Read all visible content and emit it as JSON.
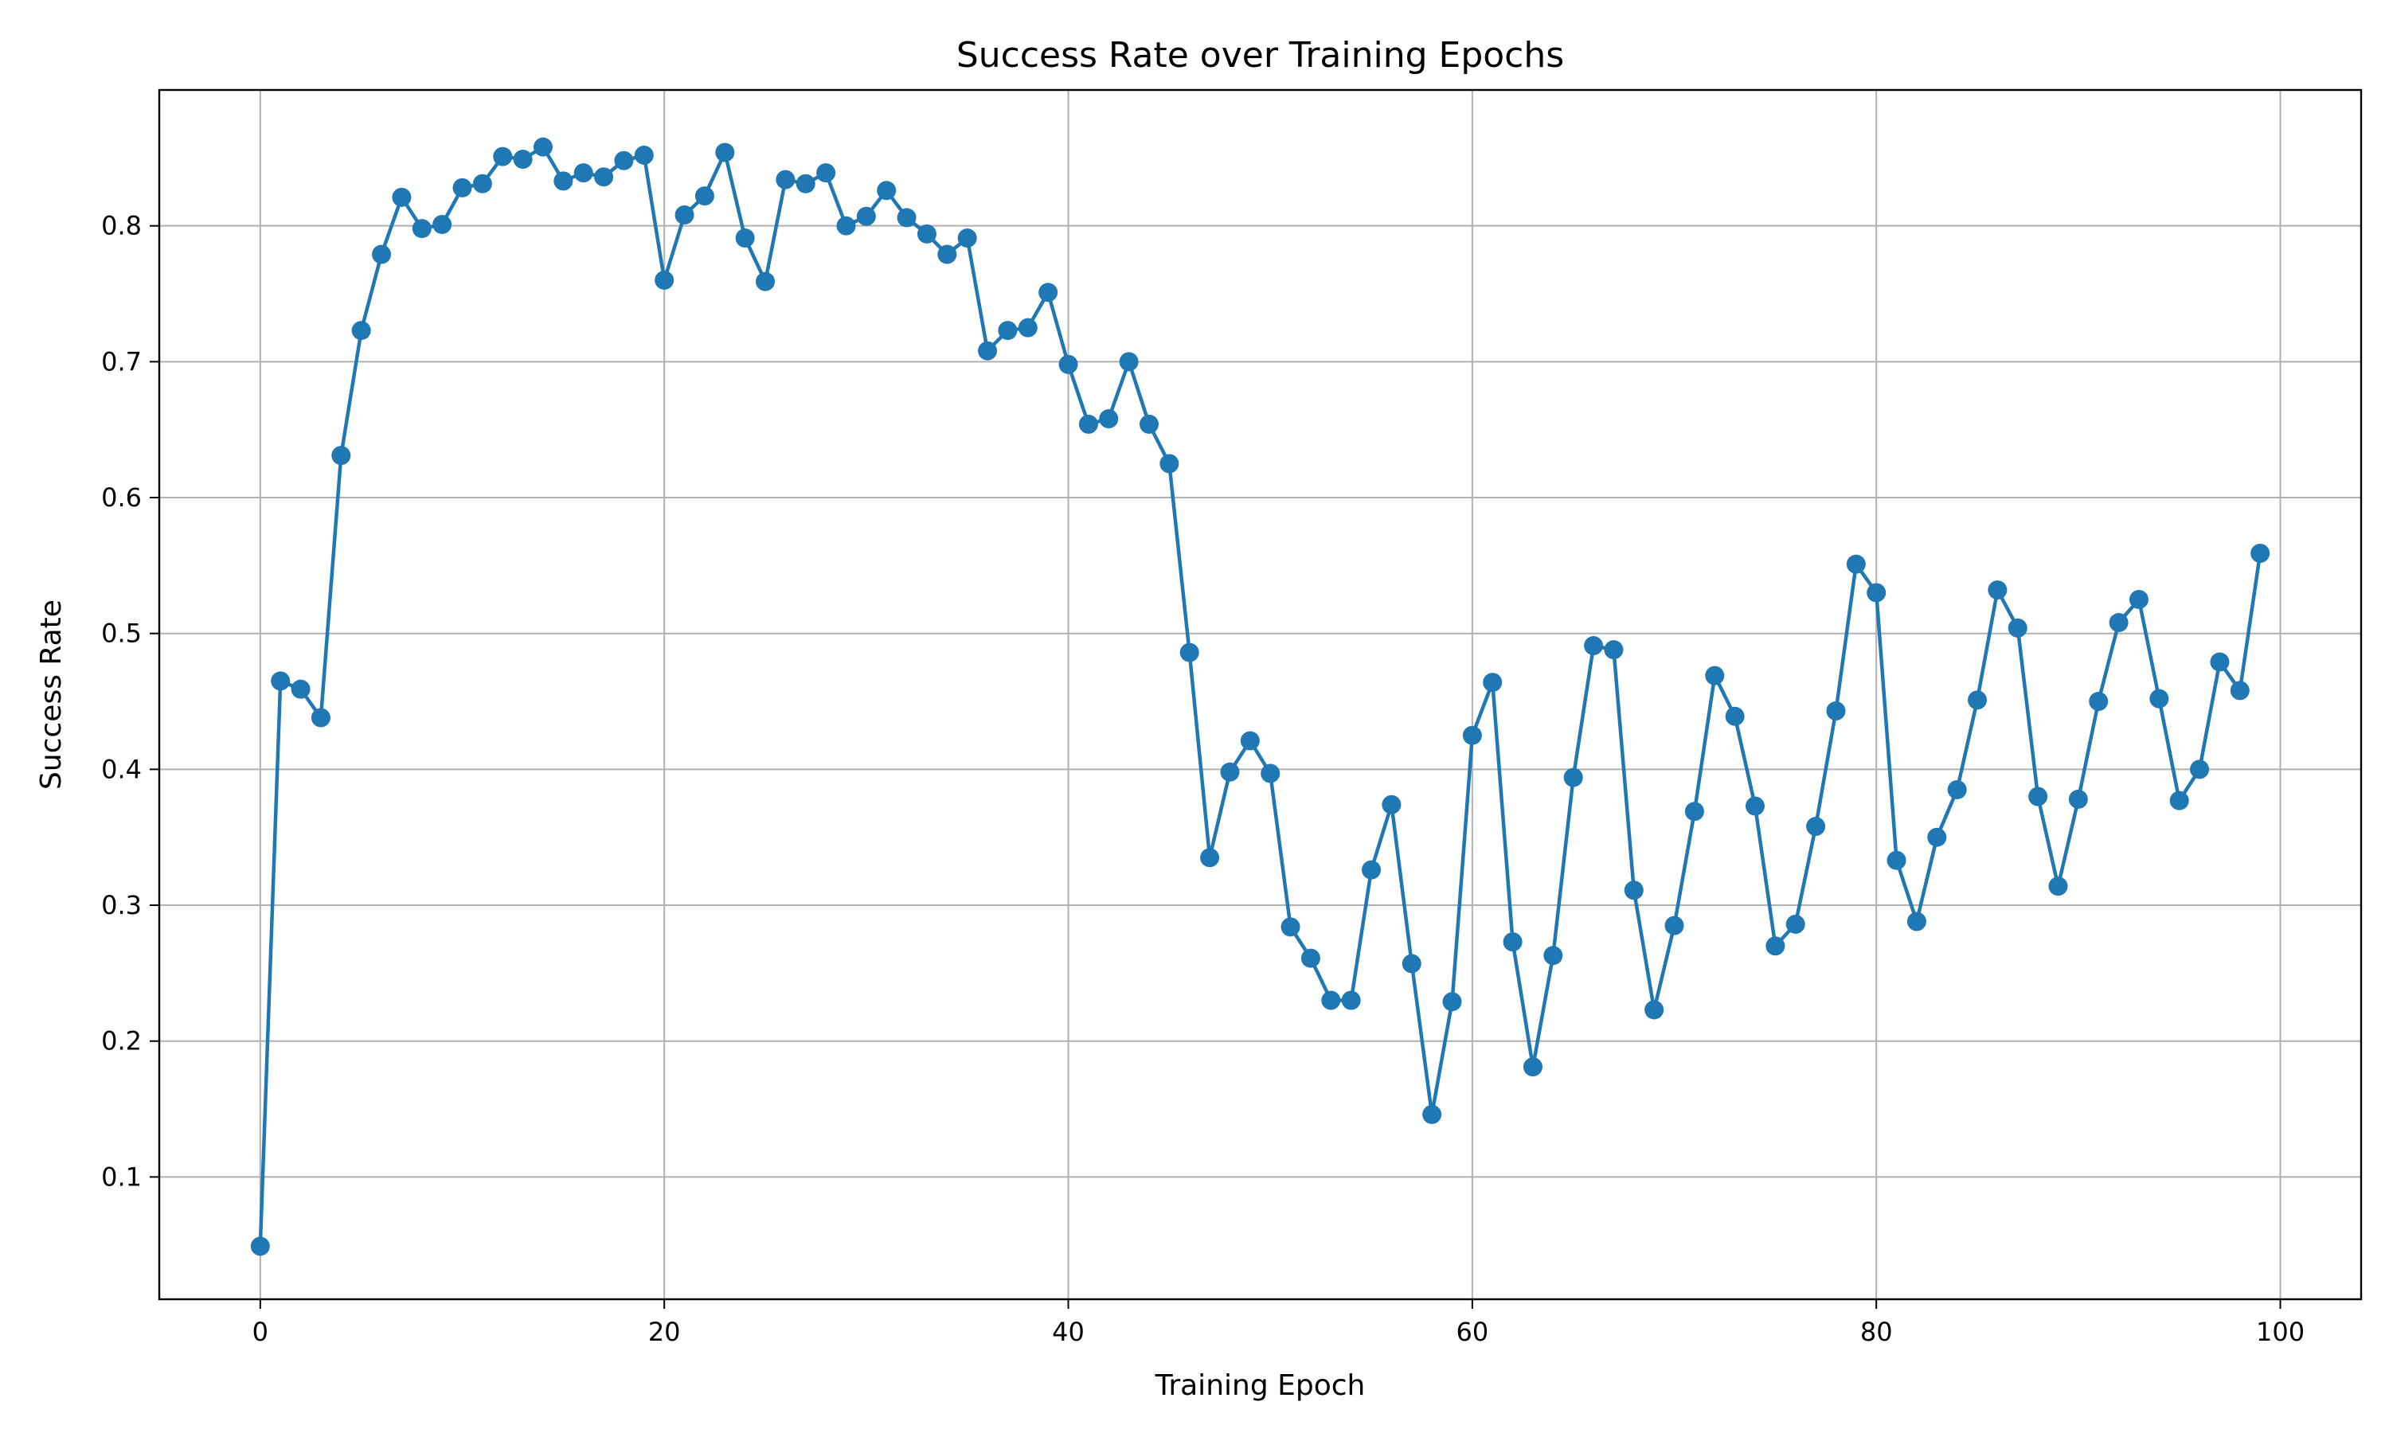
{
  "chart_data": {
    "type": "line",
    "title": "Success Rate over Training Epochs",
    "xlabel": "Training Epoch",
    "ylabel": "Success Rate",
    "xlim": [
      -5,
      104
    ],
    "ylim": [
      0.01,
      0.9
    ],
    "xticks": [
      0,
      20,
      40,
      60,
      80,
      100
    ],
    "yticks": [
      0.1,
      0.2,
      0.3,
      0.4,
      0.5,
      0.6,
      0.7,
      0.8
    ],
    "ytick_labels": [
      "0.1",
      "0.2",
      "0.3",
      "0.4",
      "0.5",
      "0.6",
      "0.7",
      "0.8"
    ],
    "grid": true,
    "color": "#1f77b4",
    "marker": "circle",
    "x": [
      0,
      1,
      2,
      3,
      4,
      5,
      6,
      7,
      8,
      9,
      10,
      11,
      12,
      13,
      14,
      15,
      16,
      17,
      18,
      19,
      20,
      21,
      22,
      23,
      24,
      25,
      26,
      27,
      28,
      29,
      30,
      31,
      32,
      33,
      34,
      35,
      36,
      37,
      38,
      39,
      40,
      41,
      42,
      43,
      44,
      45,
      46,
      47,
      48,
      49,
      50,
      51,
      52,
      53,
      54,
      55,
      56,
      57,
      58,
      59,
      60,
      61,
      62,
      63,
      64,
      65,
      66,
      67,
      68,
      69,
      70,
      71,
      72,
      73,
      74,
      75,
      76,
      77,
      78,
      79,
      80,
      81,
      82,
      83,
      84,
      85,
      86,
      87,
      88,
      89,
      90,
      91,
      92,
      93,
      94,
      95,
      96,
      97,
      98,
      99
    ],
    "y": [
      0.049,
      0.465,
      0.459,
      0.438,
      0.631,
      0.723,
      0.779,
      0.821,
      0.798,
      0.801,
      0.828,
      0.831,
      0.851,
      0.849,
      0.858,
      0.833,
      0.839,
      0.836,
      0.848,
      0.852,
      0.76,
      0.808,
      0.822,
      0.854,
      0.791,
      0.759,
      0.834,
      0.831,
      0.839,
      0.8,
      0.807,
      0.826,
      0.806,
      0.794,
      0.779,
      0.791,
      0.708,
      0.723,
      0.725,
      0.751,
      0.698,
      0.654,
      0.658,
      0.7,
      0.654,
      0.625,
      0.486,
      0.335,
      0.398,
      0.421,
      0.397,
      0.284,
      0.261,
      0.23,
      0.23,
      0.326,
      0.374,
      0.257,
      0.146,
      0.229,
      0.425,
      0.464,
      0.273,
      0.181,
      0.263,
      0.394,
      0.491,
      0.488,
      0.311,
      0.223,
      0.285,
      0.369,
      0.469,
      0.439,
      0.373,
      0.27,
      0.286,
      0.358,
      0.443,
      0.551,
      0.53,
      0.333,
      0.288,
      0.35,
      0.385,
      0.451,
      0.532,
      0.504,
      0.38,
      0.314,
      0.378,
      0.45,
      0.508,
      0.525,
      0.452,
      0.377,
      0.4,
      0.479,
      0.458,
      0.559
    ]
  }
}
